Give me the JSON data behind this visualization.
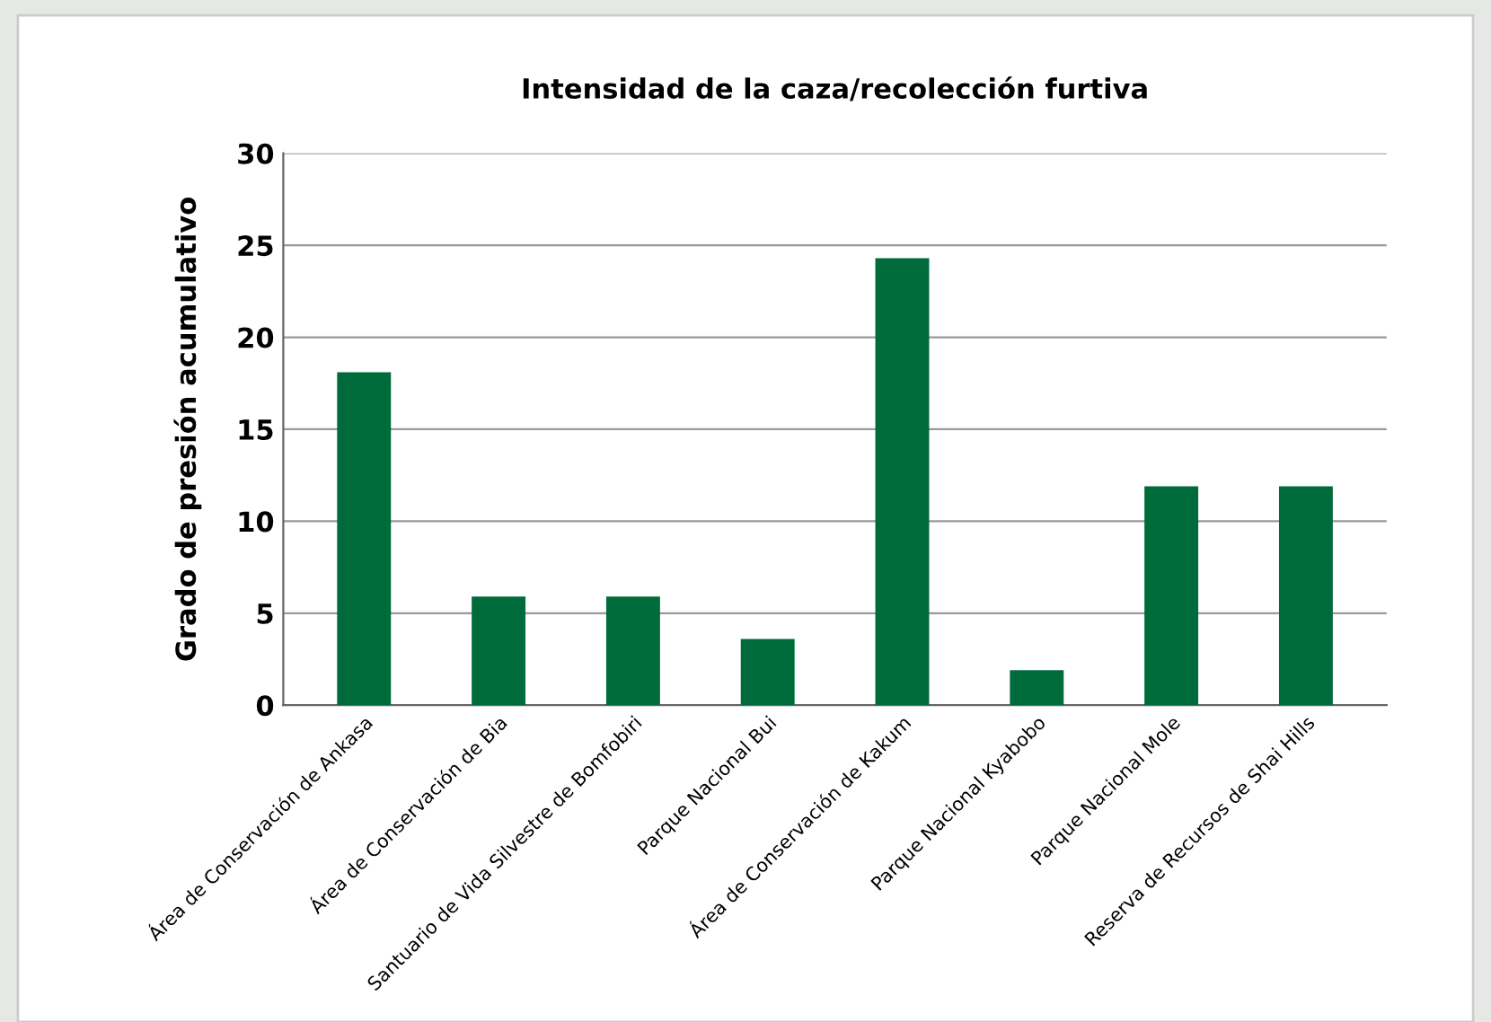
{
  "chart_data": {
    "type": "bar",
    "title": "Intensidad de la caza/recolección furtiva",
    "ylabel": "Grado de presión acumulativo",
    "categories": [
      "Área de Conservación de Ankasa",
      "Área de Conservación de Bia",
      "Santuario de Vida Silvestre de Bomfobiri",
      "Parque Nacional Bui",
      "Área de Conservación de Kakum",
      "Parque Nacional Kyabobo",
      "Parque Nacional Mole",
      "Reserva de Recursos de Shai Hills"
    ],
    "values": [
      18.1,
      5.9,
      5.9,
      3.6,
      24.3,
      1.9,
      11.9,
      11.9
    ],
    "color": "#006b3a",
    "ylim": [
      0,
      30
    ],
    "yticks": [
      0,
      5,
      10,
      15,
      20,
      25,
      30
    ],
    "grid": "y"
  }
}
